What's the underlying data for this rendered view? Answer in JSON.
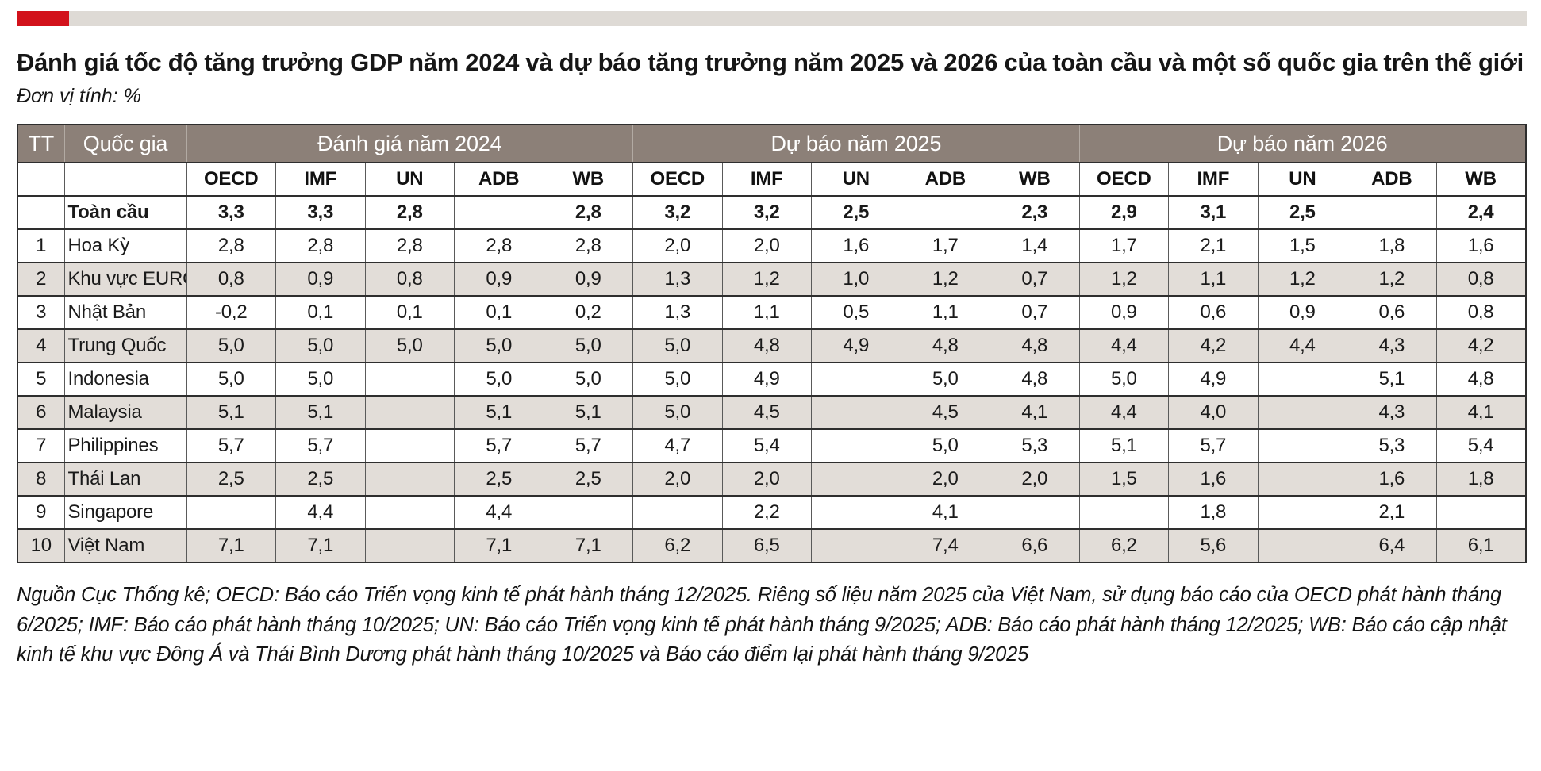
{
  "accent": {
    "red_color": "#d2121b",
    "grey_color": "#dedad5",
    "header_bg": "#8c8078",
    "row_shade": "#e2ddd8"
  },
  "title": {
    "main": "Đánh giá tốc độ tăng trưởng GDP năm 2024 và dự báo tăng trưởng năm 2025 và 2026 của toàn cầu và một số quốc gia trên thế giới",
    "unit": "Đơn vị tính: %"
  },
  "table": {
    "tt_label": "TT",
    "country_label": "Quốc gia",
    "groups": [
      "Đánh giá năm 2024",
      "Dự báo năm 2025",
      "Dự báo năm 2026"
    ],
    "orgs": [
      "OECD",
      "IMF",
      "UN",
      "ADB",
      "WB"
    ],
    "rows": [
      {
        "tt": "",
        "name": "Toàn cầu",
        "bold": true,
        "values": [
          "3,3",
          "3,3",
          "2,8",
          "",
          "2,8",
          "3,2",
          "3,2",
          "2,5",
          "",
          "2,3",
          "2,9",
          "3,1",
          "2,5",
          "",
          "2,4"
        ]
      },
      {
        "tt": "1",
        "name": "Hoa Kỳ",
        "bold": false,
        "values": [
          "2,8",
          "2,8",
          "2,8",
          "2,8",
          "2,8",
          "2,0",
          "2,0",
          "1,6",
          "1,7",
          "1,4",
          "1,7",
          "2,1",
          "1,5",
          "1,8",
          "1,6"
        ]
      },
      {
        "tt": "2",
        "name": "Khu vực EURO",
        "bold": false,
        "values": [
          "0,8",
          "0,9",
          "0,8",
          "0,9",
          "0,9",
          "1,3",
          "1,2",
          "1,0",
          "1,2",
          "0,7",
          "1,2",
          "1,1",
          "1,2",
          "1,2",
          "0,8"
        ]
      },
      {
        "tt": "3",
        "name": "Nhật Bản",
        "bold": false,
        "values": [
          "-0,2",
          "0,1",
          "0,1",
          "0,1",
          "0,2",
          "1,3",
          "1,1",
          "0,5",
          "1,1",
          "0,7",
          "0,9",
          "0,6",
          "0,9",
          "0,6",
          "0,8"
        ]
      },
      {
        "tt": "4",
        "name": "Trung Quốc",
        "bold": false,
        "values": [
          "5,0",
          "5,0",
          "5,0",
          "5,0",
          "5,0",
          "5,0",
          "4,8",
          "4,9",
          "4,8",
          "4,8",
          "4,4",
          "4,2",
          "4,4",
          "4,3",
          "4,2"
        ]
      },
      {
        "tt": "5",
        "name": "Indonesia",
        "bold": false,
        "values": [
          "5,0",
          "5,0",
          "",
          "5,0",
          "5,0",
          "5,0",
          "4,9",
          "",
          "5,0",
          "4,8",
          "5,0",
          "4,9",
          "",
          "5,1",
          "4,8"
        ]
      },
      {
        "tt": "6",
        "name": "Malaysia",
        "bold": false,
        "values": [
          "5,1",
          "5,1",
          "",
          "5,1",
          "5,1",
          "5,0",
          "4,5",
          "",
          "4,5",
          "4,1",
          "4,4",
          "4,0",
          "",
          "4,3",
          "4,1"
        ]
      },
      {
        "tt": "7",
        "name": "Philippines",
        "bold": false,
        "values": [
          "5,7",
          "5,7",
          "",
          "5,7",
          "5,7",
          "4,7",
          "5,4",
          "",
          "5,0",
          "5,3",
          "5,1",
          "5,7",
          "",
          "5,3",
          "5,4"
        ]
      },
      {
        "tt": "8",
        "name": "Thái Lan",
        "bold": false,
        "values": [
          "2,5",
          "2,5",
          "",
          "2,5",
          "2,5",
          "2,0",
          "2,0",
          "",
          "2,0",
          "2,0",
          "1,5",
          "1,6",
          "",
          "1,6",
          "1,8"
        ]
      },
      {
        "tt": "9",
        "name": "Singapore",
        "bold": false,
        "values": [
          "",
          "4,4",
          "",
          "4,4",
          "",
          "",
          "2,2",
          "",
          "4,1",
          "",
          "",
          "1,8",
          "",
          "2,1",
          ""
        ]
      },
      {
        "tt": "10",
        "name": "Việt Nam",
        "bold": false,
        "values": [
          "7,1",
          "7,1",
          "",
          "7,1",
          "7,1",
          "6,2",
          "6,5",
          "",
          "7,4",
          "6,6",
          "6,2",
          "5,6",
          "",
          "6,4",
          "6,1"
        ]
      }
    ]
  },
  "source": "Nguồn Cục Thống kê; OECD: Báo cáo Triển vọng kinh tế phát hành tháng 12/2025. Riêng số liệu năm 2025 của Việt Nam, sử dụng báo cáo của OECD phát hành tháng 6/2025; IMF: Báo cáo phát hành tháng 10/2025; UN: Báo cáo Triển vọng kinh tế phát hành tháng 9/2025; ADB: Báo cáo phát hành tháng 12/2025; WB: Báo cáo cập nhật kinh tế khu vực Đông Á và Thái Bình Dương phát hành tháng 10/2025 và Báo cáo điểm lại phát hành tháng 9/2025"
}
